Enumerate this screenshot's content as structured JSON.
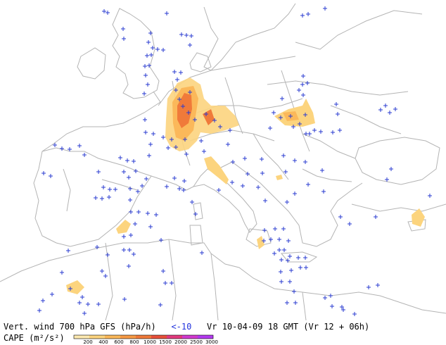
{
  "legend": {
    "line1_prefix": "Vert. wind 700 hPa GFS (hPa/h)",
    "line1_threshold": "<-10",
    "line1_time": "Vr 10-04-09 18 GMT (Vr 12 + 06h)",
    "cape_label": "CAPE (m²/s²)",
    "cape_ticks": [
      "200",
      "400",
      "600",
      "800",
      "1000",
      "1500",
      "2000",
      "2500",
      "3000"
    ],
    "cape_colors": [
      "#fde9b0",
      "#fcd47e",
      "#fbb85a",
      "#f79a45",
      "#f07a3a",
      "#e8503a",
      "#e23a7e",
      "#d23ad0",
      "#b43af0"
    ]
  },
  "colors": {
    "coast": "#b4b4b4",
    "plus": "#2a3bd0",
    "cape_low": "#fcd47e",
    "cape_mid": "#fbb85a",
    "cape_high": "#f07a3a"
  }
}
